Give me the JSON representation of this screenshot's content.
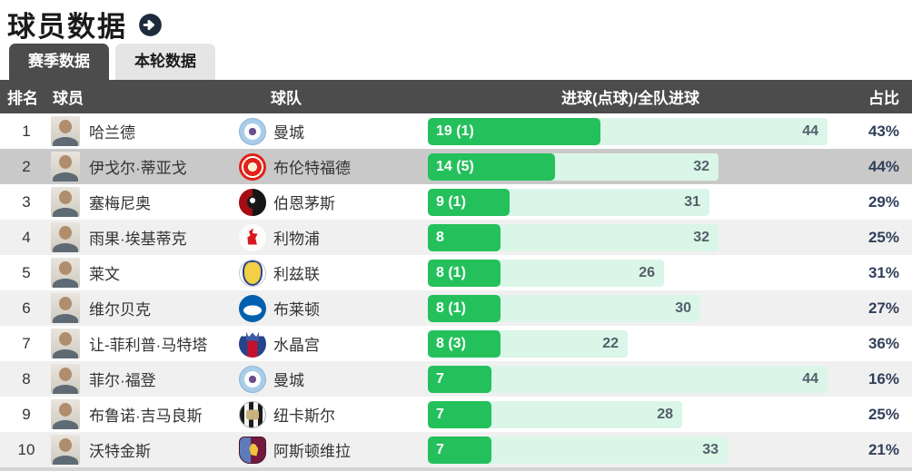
{
  "page": {
    "title": "球员数据",
    "title_arrow_icon": "arrow-right-circle-icon"
  },
  "tabs": [
    {
      "label": "赛季数据",
      "active": true
    },
    {
      "label": "本轮数据",
      "active": false
    }
  ],
  "table": {
    "headers": {
      "rank": "排名",
      "player": "球员",
      "team": "球队",
      "goals": "进球(点球)/全队进球",
      "ratio": "占比"
    },
    "max_team_goals": 44,
    "rows": [
      {
        "rank": "1",
        "player": "哈兰德",
        "team": "曼城",
        "team_key": "mancity",
        "goals_label": "19 (1)",
        "goals": 19,
        "team_goals": 44,
        "ratio": "43%",
        "highlight": false
      },
      {
        "rank": "2",
        "player": "伊戈尔·蒂亚戈",
        "team": "布伦特福德",
        "team_key": "brentford",
        "goals_label": "14 (5)",
        "goals": 14,
        "team_goals": 32,
        "ratio": "44%",
        "highlight": true
      },
      {
        "rank": "3",
        "player": "塞梅尼奥",
        "team": "伯恩茅斯",
        "team_key": "bournemouth",
        "goals_label": "9 (1)",
        "goals": 9,
        "team_goals": 31,
        "ratio": "29%",
        "highlight": false
      },
      {
        "rank": "4",
        "player": "雨果·埃基蒂克",
        "team": "利物浦",
        "team_key": "liverpool",
        "goals_label": "8",
        "goals": 8,
        "team_goals": 32,
        "ratio": "25%",
        "highlight": false
      },
      {
        "rank": "5",
        "player": "莱文",
        "team": "利兹联",
        "team_key": "leeds",
        "goals_label": "8 (1)",
        "goals": 8,
        "team_goals": 26,
        "ratio": "31%",
        "highlight": false
      },
      {
        "rank": "6",
        "player": "维尔贝克",
        "team": "布莱顿",
        "team_key": "brighton",
        "goals_label": "8 (1)",
        "goals": 8,
        "team_goals": 30,
        "ratio": "27%",
        "highlight": false
      },
      {
        "rank": "7",
        "player": "让-菲利普·马特塔",
        "team": "水晶宫",
        "team_key": "palace",
        "goals_label": "8 (3)",
        "goals": 8,
        "team_goals": 22,
        "ratio": "36%",
        "highlight": false
      },
      {
        "rank": "8",
        "player": "菲尔·福登",
        "team": "曼城",
        "team_key": "mancity",
        "goals_label": "7",
        "goals": 7,
        "team_goals": 44,
        "ratio": "16%",
        "highlight": false
      },
      {
        "rank": "9",
        "player": "布鲁诺·吉马良斯",
        "team": "纽卡斯尔",
        "team_key": "newcastle",
        "goals_label": "7",
        "goals": 7,
        "team_goals": 28,
        "ratio": "25%",
        "highlight": false
      },
      {
        "rank": "10",
        "player": "沃特金斯",
        "team": "阿斯顿维拉",
        "team_key": "villa",
        "goals_label": "7",
        "goals": 7,
        "team_goals": 33,
        "ratio": "21%",
        "highlight": false
      }
    ]
  },
  "colors": {
    "accent_green": "#24c05c",
    "mint_track": "#daf6e8",
    "header_bg": "#4c4c4c",
    "highlight_row": "#c9c9c9",
    "shade_row": "#f0f0f0"
  }
}
